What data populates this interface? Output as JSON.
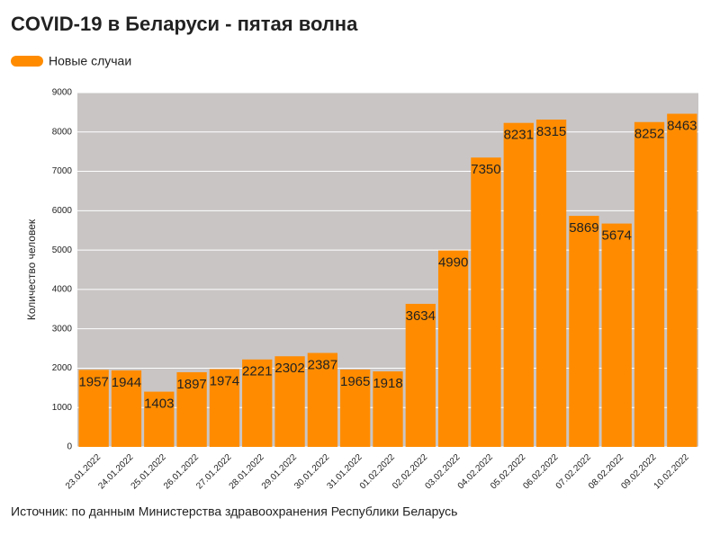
{
  "chart_data": {
    "type": "bar",
    "title": "COVID-19 в Беларуси - пятая волна",
    "y_label": "Количество человек",
    "source": "Источник: по данным Министерства здравоохранения Республики Беларусь",
    "categories": [
      "23.01.2022",
      "24.01.2022",
      "25.01.2022",
      "26.01.2022",
      "27.01.2022",
      "28.01.2022",
      "29.01.2022",
      "30.01.2022",
      "31.01.2022",
      "01.02.2022",
      "02.02.2022",
      "03.02.2022",
      "04.02.2022",
      "05.02.2022",
      "06.02.2022",
      "07.02.2022",
      "08.02.2022",
      "09.02.2022",
      "10.02.2022"
    ],
    "series": [
      {
        "name": "Новые случаи",
        "color": "#ff8c00",
        "values": [
          1957,
          1944,
          1403,
          1897,
          1974,
          2221,
          2302,
          2387,
          1965,
          1918,
          3634,
          4990,
          7350,
          8231,
          8315,
          5869,
          5674,
          8252,
          8463
        ]
      }
    ],
    "ylim": [
      0,
      9000
    ],
    "yticks": [
      0,
      1000,
      2000,
      3000,
      4000,
      5000,
      6000,
      7000,
      8000,
      9000
    ],
    "grid": true,
    "legend": "top-left"
  }
}
